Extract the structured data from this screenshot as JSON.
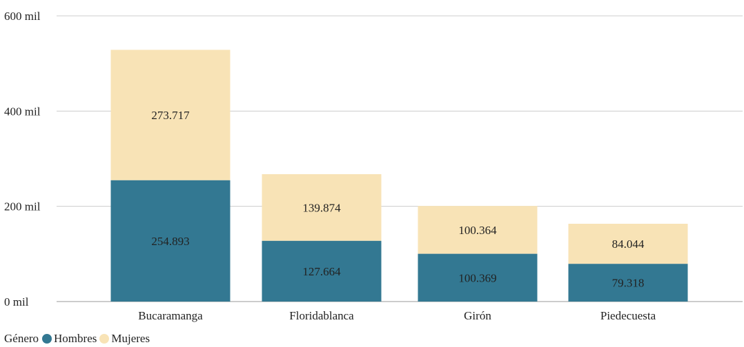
{
  "chart_data": {
    "type": "bar",
    "stacked": true,
    "categories": [
      "Bucaramanga",
      "Floridablanca",
      "Girón",
      "Piedecuesta"
    ],
    "series": [
      {
        "name": "Hombres",
        "values": [
          254893,
          127664,
          100369,
          79318
        ],
        "labels": [
          "254.893",
          "127.664",
          "100.369",
          "79.318"
        ],
        "color": "#337892"
      },
      {
        "name": "Mujeres",
        "values": [
          273717,
          139874,
          100364,
          84044
        ],
        "labels": [
          "273.717",
          "139.874",
          "100.364",
          "84.044"
        ],
        "color": "#f8e3b6"
      }
    ],
    "ylim": [
      0,
      600000
    ],
    "y_ticks": [
      {
        "value": 0,
        "label": "0 mil"
      },
      {
        "value": 200000,
        "label": "200 mil"
      },
      {
        "value": 400000,
        "label": "400 mil"
      },
      {
        "value": 600000,
        "label": "600 mil"
      }
    ],
    "grid": true,
    "legend": {
      "title": "Género",
      "position": "bottom-left"
    },
    "gridline_color": "#cccccc",
    "axis_color": "#999999"
  }
}
